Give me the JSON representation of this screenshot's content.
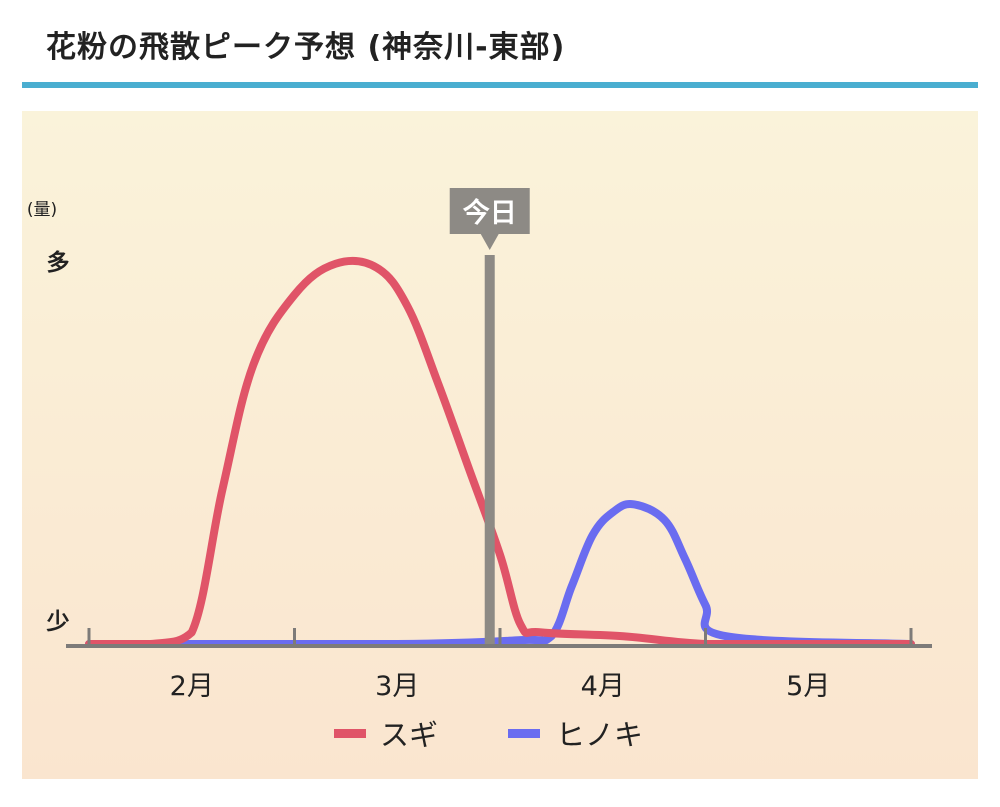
{
  "header": {
    "title": "花粉の飛散ピーク予想 (神奈川-東部)"
  },
  "colors": {
    "accent_rule": "#4aaed0",
    "sugi": "#e05468",
    "hinoki": "#6a6cf0",
    "today_marker": "#8d8a85",
    "axis": "#7d7b79"
  },
  "chart_data": {
    "type": "line",
    "ylabel": "(量)",
    "y_max_label": "多",
    "y_min_label": "少",
    "ylim": [
      0,
      100
    ],
    "x_tick_labels": [
      "2月",
      "3月",
      "4月",
      "5月"
    ],
    "today_label": "今日",
    "today_x": 2.95,
    "grid": false,
    "legend_position": "bottom",
    "series": [
      {
        "name": "スギ",
        "color": "#e05468",
        "x": [
          1.0,
          1.3,
          1.5,
          1.65,
          1.8,
          2.0,
          2.2,
          2.4,
          2.55,
          2.7,
          2.85,
          3.0,
          3.1,
          3.2,
          3.6,
          4.0,
          4.5,
          5.0
        ],
        "y": [
          0,
          0,
          3,
          40,
          72,
          90,
          98,
          97,
          87,
          67,
          45,
          23,
          5,
          3,
          2,
          0,
          0,
          0
        ]
      },
      {
        "name": "ヒノキ",
        "color": "#6a6cf0",
        "x": [
          1.0,
          2.5,
          3.1,
          3.25,
          3.35,
          3.45,
          3.55,
          3.65,
          3.8,
          3.9,
          4.0,
          4.1,
          5.0
        ],
        "y": [
          0,
          0,
          1,
          2,
          15,
          28,
          34,
          36,
          32,
          22,
          10,
          2,
          0
        ]
      }
    ]
  }
}
